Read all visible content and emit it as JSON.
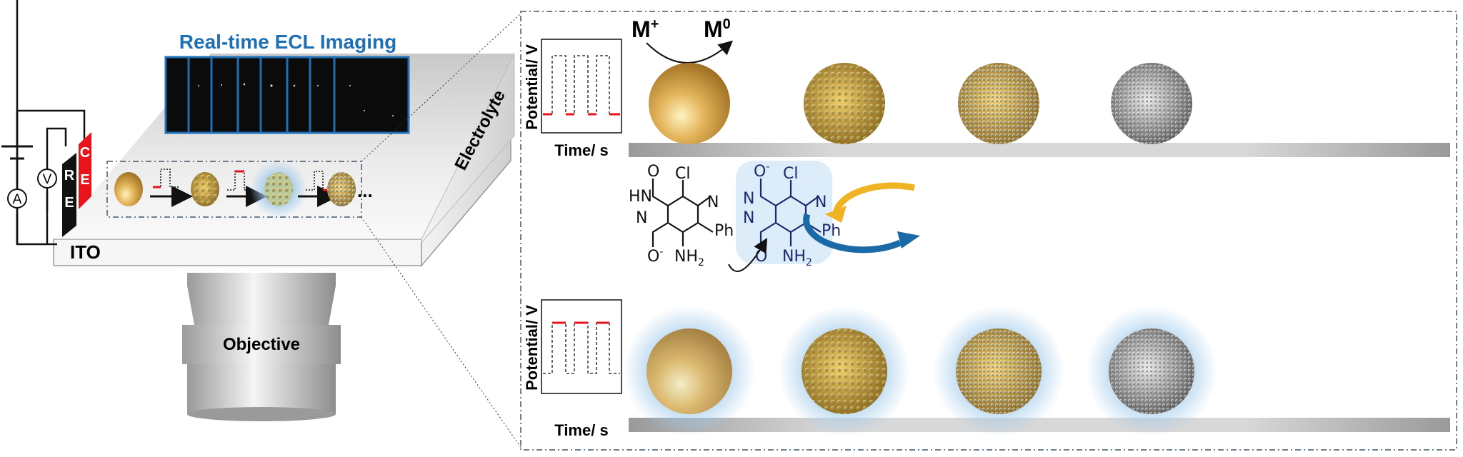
{
  "left": {
    "imaging_title": "Real-time ECL Imaging",
    "electrolyte_label": "Electrolyte",
    "ito_label": "ITO",
    "objective_label": "Objective",
    "ammeter_label": "A",
    "voltmeter_label": "V",
    "re_label": [
      "R",
      "E"
    ],
    "ce_label": [
      "C",
      "E"
    ],
    "ellipsis": "..."
  },
  "right": {
    "top_plot": {
      "ylabel": "Potential/ V",
      "xlabel": "Time/ s"
    },
    "bottom_plot": {
      "ylabel": "Potential/ V",
      "xlabel": "Time/ s"
    },
    "reaction_start": "M",
    "reaction_start_sup": "+",
    "reaction_end": "M",
    "reaction_end_sup": "0",
    "molecule_left": {
      "o_top": "O",
      "cl": "Cl",
      "hn": "HN",
      "n1": "N",
      "n_ring": "N",
      "ph": "Ph",
      "o_bottom": "O",
      "o_charge": "-",
      "nh2": "NH",
      "nh2_sub": "2"
    },
    "molecule_right": {
      "o_top": "O",
      "o_charge": "-",
      "cl": "Cl",
      "n1": "N",
      "n2": "N",
      "n_ring": "N",
      "ph": "Ph",
      "o_bottom": "O",
      "nh2": "NH",
      "nh2_sub": "2"
    }
  },
  "colors": {
    "title_blue": "#1f6fb5",
    "ce_red": "#e8141b",
    "pulse_red": "#e8141b",
    "gold": "#d4a640",
    "cycle_yellow": "#f0b323",
    "cycle_blue": "#1a6aa8",
    "glow_blue": "#9cc8ea"
  }
}
